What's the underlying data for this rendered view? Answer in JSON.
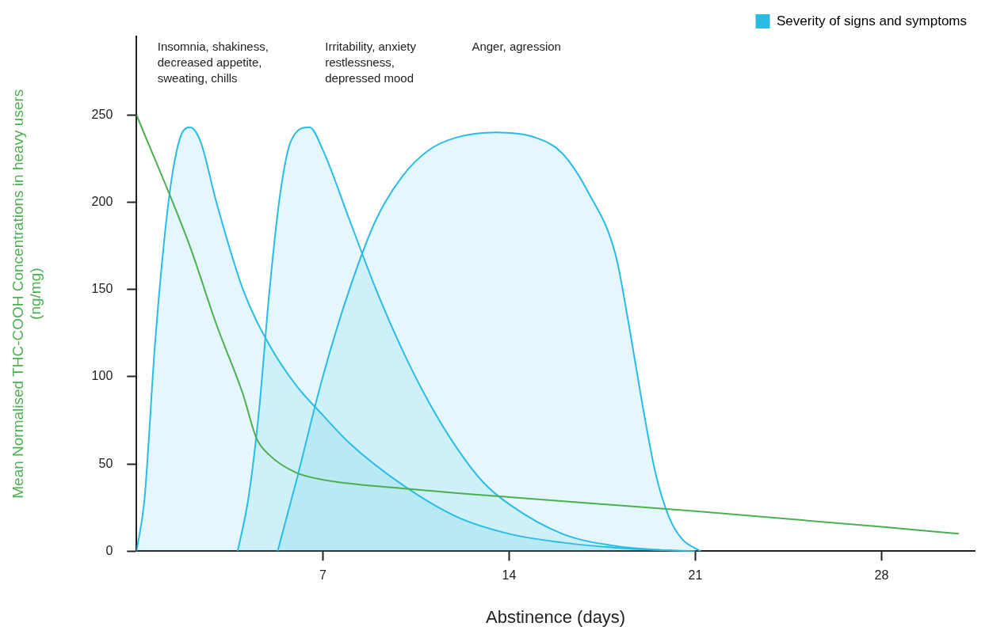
{
  "chart_data": {
    "type": "line",
    "xlabel": "Abstinence (days)",
    "ylabel": "Mean Normalised THC-COOH Concentrations in heavy users\n(ng/mg)",
    "xlim": [
      0,
      31.5
    ],
    "xticks": [
      7,
      14,
      21,
      28
    ],
    "ylim": [
      0,
      295
    ],
    "yticks": [
      0,
      50,
      100,
      150,
      200,
      250
    ],
    "grid": false,
    "legend": "top right",
    "marker": "none",
    "series": [
      {
        "type": "line",
        "color": "#4caf50",
        "x": [
          0,
          2,
          3,
          4,
          4.5,
          5,
          6,
          7,
          10,
          14,
          21,
          28,
          30.9
        ],
        "values": [
          250,
          175,
          130,
          90,
          65,
          55,
          45,
          41,
          36,
          31,
          23,
          14,
          10
        ]
      },
      {
        "type": "area",
        "name": "Severity of signs and symptoms",
        "color": "#29bde6",
        "x": [
          0,
          0.3,
          0.7,
          1.2,
          1.6,
          2,
          2.4,
          3,
          4,
          5,
          6,
          7,
          8,
          10,
          12,
          14,
          16,
          18,
          20,
          21
        ],
        "values": [
          0,
          30,
          120,
          200,
          235,
          243,
          235,
          200,
          150,
          118,
          95,
          78,
          62,
          38,
          20,
          10,
          5,
          2,
          0.5,
          0
        ]
      },
      {
        "type": "area",
        "color": "#29bde6",
        "x": [
          3.8,
          4.2,
          4.6,
          5,
          5.4,
          5.8,
          6.5,
          7,
          8,
          9,
          10,
          11,
          12,
          13,
          14,
          16,
          18,
          20,
          21
        ],
        "values": [
          0,
          30,
          80,
          150,
          205,
          235,
          243,
          230,
          190,
          150,
          115,
          85,
          60,
          40,
          27,
          10,
          3,
          0.5,
          0
        ]
      },
      {
        "type": "area",
        "color": "#29bde6",
        "x": [
          5.3,
          6,
          7,
          8,
          9,
          10,
          11,
          12,
          13.5,
          15,
          16,
          17,
          18,
          18.5,
          19,
          19.5,
          20,
          20.5,
          21.2
        ],
        "values": [
          0,
          40,
          100,
          150,
          190,
          215,
          230,
          237,
          240,
          237,
          228,
          205,
          170,
          130,
          85,
          45,
          20,
          7,
          0
        ]
      }
    ],
    "annotations": [
      "Insomnia, shakiness,\ndecreased appetite,\nsweating, chills",
      "Irritability, anxiety\nrestlessness,\ndepressed mood",
      "Anger, agression"
    ]
  }
}
